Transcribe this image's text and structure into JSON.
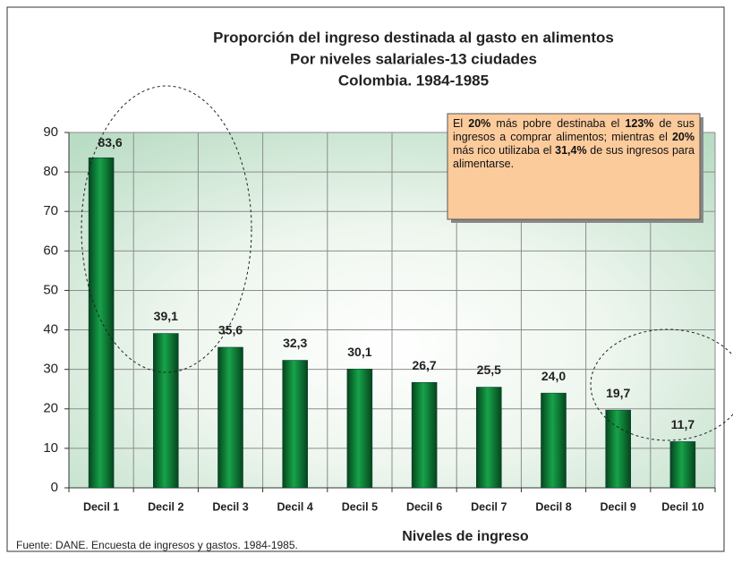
{
  "chart_data": {
    "type": "bar",
    "title": [
      "Proporción del ingreso destinada al gasto en alimentos",
      "Por niveles salariales-13 ciudades",
      "Colombia.  1984-1985"
    ],
    "categories": [
      "Decil 1",
      "Decil 2",
      "Decil 3",
      "Decil 4",
      "Decil 5",
      "Decil 6",
      "Decil 7",
      "Decil 8",
      "Decil 9",
      "Decil 10"
    ],
    "values": [
      83.6,
      39.1,
      35.6,
      32.3,
      30.1,
      26.7,
      25.5,
      24.0,
      19.7,
      11.7
    ],
    "value_labels": [
      "83,6",
      "39,1",
      "35,6",
      "32,3",
      "30,1",
      "26,7",
      "25,5",
      "24,0",
      "19,7",
      "11,7"
    ],
    "color": "#0e8a3a",
    "ylim": [
      0,
      90
    ],
    "yticks": [
      0,
      10,
      20,
      30,
      40,
      50,
      60,
      70,
      80,
      90
    ],
    "grid": true,
    "xlabel": "Niveles de ingreso",
    "source": "Fuente: DANE.  Encuesta de ingresos y gastos.  1984-1985.",
    "annotation": [
      {
        "text": "El ",
        "bold": false
      },
      {
        "text": "20%",
        "bold": true
      },
      {
        "text": " más pobre destinaba el ",
        "bold": false
      },
      {
        "text": "123%",
        "bold": true
      },
      {
        "text": " de sus ingresos a comprar alimentos; mientras el ",
        "bold": false
      },
      {
        "text": "20%",
        "bold": true
      },
      {
        "text": "  más rico utilizaba el ",
        "bold": false
      },
      {
        "text": "31,4%",
        "bold": true
      },
      {
        "text": " de sus ingresos para alimentarse.",
        "bold": false
      }
    ]
  }
}
